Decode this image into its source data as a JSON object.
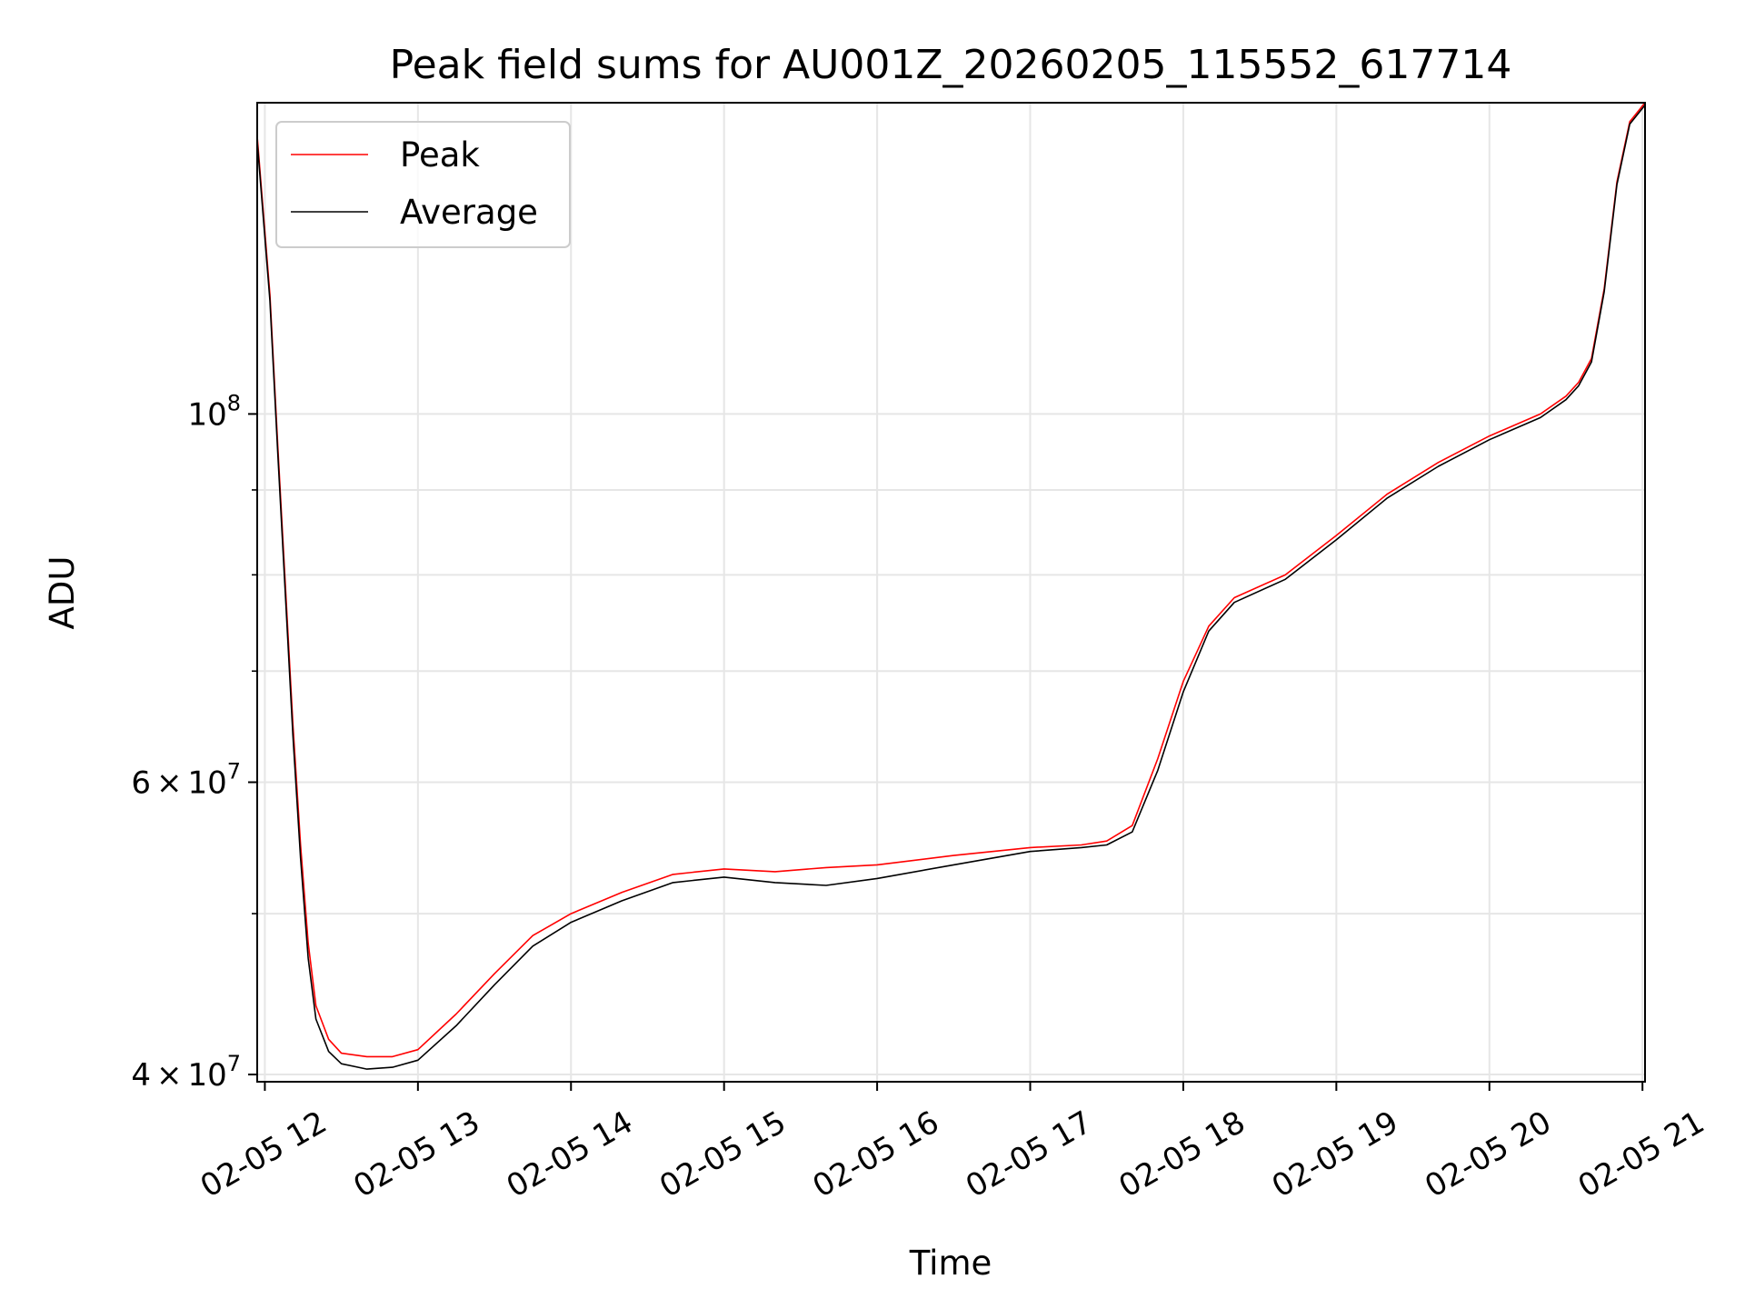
{
  "chart_data": {
    "type": "line",
    "title": "Peak field sums for AU001Z_20260205_115552_617714",
    "xlabel": "Time",
    "ylabel": "ADU",
    "x_scale": "time",
    "y_scale": "log",
    "xlim": [
      "2026-02-05T11:57",
      "2026-02-05T21:01"
    ],
    "ylim": [
      39600000,
      154000000
    ],
    "grid": true,
    "legend": "top-left",
    "x_ticks": [
      {
        "value": "2026-02-05T12:00",
        "label": "02-05 12"
      },
      {
        "value": "2026-02-05T13:00",
        "label": "02-05 13"
      },
      {
        "value": "2026-02-05T14:00",
        "label": "02-05 14"
      },
      {
        "value": "2026-02-05T15:00",
        "label": "02-05 15"
      },
      {
        "value": "2026-02-05T16:00",
        "label": "02-05 16"
      },
      {
        "value": "2026-02-05T17:00",
        "label": "02-05 17"
      },
      {
        "value": "2026-02-05T18:00",
        "label": "02-05 18"
      },
      {
        "value": "2026-02-05T19:00",
        "label": "02-05 19"
      },
      {
        "value": "2026-02-05T20:00",
        "label": "02-05 20"
      },
      {
        "value": "2026-02-05T21:00",
        "label": "02-05 21"
      }
    ],
    "y_major_ticks": [
      {
        "value": 40000000,
        "mantissa": "4",
        "base": "10",
        "exp": "7"
      },
      {
        "value": 60000000,
        "mantissa": "6",
        "base": "10",
        "exp": "7"
      },
      {
        "value": 100000000,
        "mantissa": "",
        "base": "10",
        "exp": "8"
      }
    ],
    "y_minor_ticks": [
      50000000,
      70000000,
      80000000,
      90000000
    ],
    "series": [
      {
        "name": "Peak",
        "color": "#ff0000",
        "x": [
          "2026-02-05T11:57",
          "2026-02-05T12:02",
          "2026-02-05T12:05",
          "2026-02-05T12:08",
          "2026-02-05T12:11",
          "2026-02-05T12:14",
          "2026-02-05T12:17",
          "2026-02-05T12:20",
          "2026-02-05T12:25",
          "2026-02-05T12:30",
          "2026-02-05T12:40",
          "2026-02-05T12:50",
          "2026-02-05T13:00",
          "2026-02-05T13:15",
          "2026-02-05T13:30",
          "2026-02-05T13:45",
          "2026-02-05T14:00",
          "2026-02-05T14:20",
          "2026-02-05T14:40",
          "2026-02-05T15:00",
          "2026-02-05T15:20",
          "2026-02-05T15:40",
          "2026-02-05T16:00",
          "2026-02-05T16:30",
          "2026-02-05T17:00",
          "2026-02-05T17:20",
          "2026-02-05T17:30",
          "2026-02-05T17:40",
          "2026-02-05T17:50",
          "2026-02-05T18:00",
          "2026-02-05T18:10",
          "2026-02-05T18:20",
          "2026-02-05T18:40",
          "2026-02-05T19:00",
          "2026-02-05T19:20",
          "2026-02-05T19:40",
          "2026-02-05T20:00",
          "2026-02-05T20:20",
          "2026-02-05T20:30",
          "2026-02-05T20:35",
          "2026-02-05T20:40",
          "2026-02-05T20:45",
          "2026-02-05T20:50",
          "2026-02-05T20:55",
          "2026-02-05T21:01"
        ],
        "values": [
          147000000,
          118000000,
          96000000,
          79000000,
          65000000,
          55000000,
          48000000,
          44000000,
          42000000,
          41200000,
          41000000,
          41000000,
          41400000,
          43500000,
          46000000,
          48500000,
          50000000,
          51500000,
          52800000,
          53200000,
          53000000,
          53300000,
          53500000,
          54200000,
          54800000,
          55000000,
          55300000,
          56500000,
          62000000,
          69000000,
          74500000,
          77500000,
          80000000,
          84500000,
          89500000,
          93500000,
          97000000,
          100000000,
          102500000,
          104500000,
          108000000,
          119000000,
          138000000,
          150000000,
          154000000
        ]
      },
      {
        "name": "Average",
        "color": "#000000",
        "x": [
          "2026-02-05T11:57",
          "2026-02-05T12:02",
          "2026-02-05T12:05",
          "2026-02-05T12:08",
          "2026-02-05T12:11",
          "2026-02-05T12:14",
          "2026-02-05T12:17",
          "2026-02-05T12:20",
          "2026-02-05T12:25",
          "2026-02-05T12:30",
          "2026-02-05T12:40",
          "2026-02-05T12:50",
          "2026-02-05T13:00",
          "2026-02-05T13:15",
          "2026-02-05T13:30",
          "2026-02-05T13:45",
          "2026-02-05T14:00",
          "2026-02-05T14:20",
          "2026-02-05T14:40",
          "2026-02-05T15:00",
          "2026-02-05T15:20",
          "2026-02-05T15:40",
          "2026-02-05T16:00",
          "2026-02-05T16:30",
          "2026-02-05T17:00",
          "2026-02-05T17:20",
          "2026-02-05T17:30",
          "2026-02-05T17:40",
          "2026-02-05T17:50",
          "2026-02-05T18:00",
          "2026-02-05T18:10",
          "2026-02-05T18:20",
          "2026-02-05T18:40",
          "2026-02-05T19:00",
          "2026-02-05T19:20",
          "2026-02-05T19:40",
          "2026-02-05T20:00",
          "2026-02-05T20:20",
          "2026-02-05T20:30",
          "2026-02-05T20:35",
          "2026-02-05T20:40",
          "2026-02-05T20:45",
          "2026-02-05T20:50",
          "2026-02-05T20:55",
          "2026-02-05T21:01"
        ],
        "values": [
          146000000,
          117000000,
          95000000,
          78000000,
          64000000,
          54000000,
          47000000,
          43200000,
          41300000,
          40600000,
          40300000,
          40400000,
          40800000,
          42800000,
          45300000,
          47800000,
          49400000,
          50900000,
          52200000,
          52600000,
          52200000,
          52000000,
          52500000,
          53500000,
          54500000,
          54800000,
          55000000,
          56000000,
          61000000,
          68000000,
          74000000,
          77000000,
          79500000,
          84000000,
          89000000,
          93000000,
          96500000,
          99500000,
          102000000,
          104000000,
          107500000,
          118500000,
          137500000,
          149500000,
          153500000
        ]
      }
    ]
  }
}
